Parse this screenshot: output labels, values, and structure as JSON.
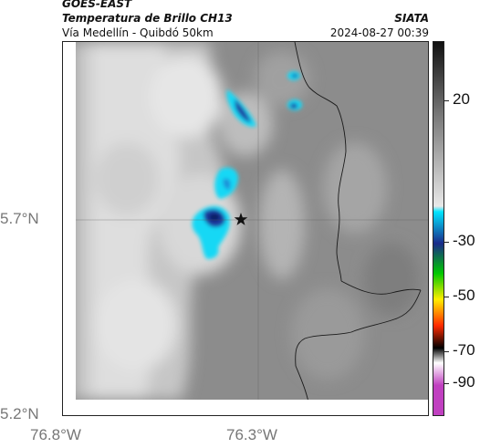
{
  "header": {
    "satellite": "GOES-EAST",
    "product": "Temperatura de Brillo CH13",
    "route": "Vía Medellín - Quibdó 50km",
    "org": "SIATA",
    "timestamp": "2024-08-27 00:39"
  },
  "axes": {
    "lat_labels": [
      "5.7°N",
      "5.2°N"
    ],
    "lon_labels": [
      "76.8°W",
      "76.3°W"
    ]
  },
  "colorbar": {
    "tick_labels": [
      "20",
      "-30",
      "-50",
      "-70",
      "-90"
    ],
    "colors": [
      "#111111",
      "#7a7a7a",
      "#e8e8e8",
      "#00e5ff",
      "#1a2a8a",
      "#00c800",
      "#ffee00",
      "#ff2a00",
      "#000000",
      "#c040c0"
    ]
  },
  "map": {
    "marker": "star-icon"
  }
}
